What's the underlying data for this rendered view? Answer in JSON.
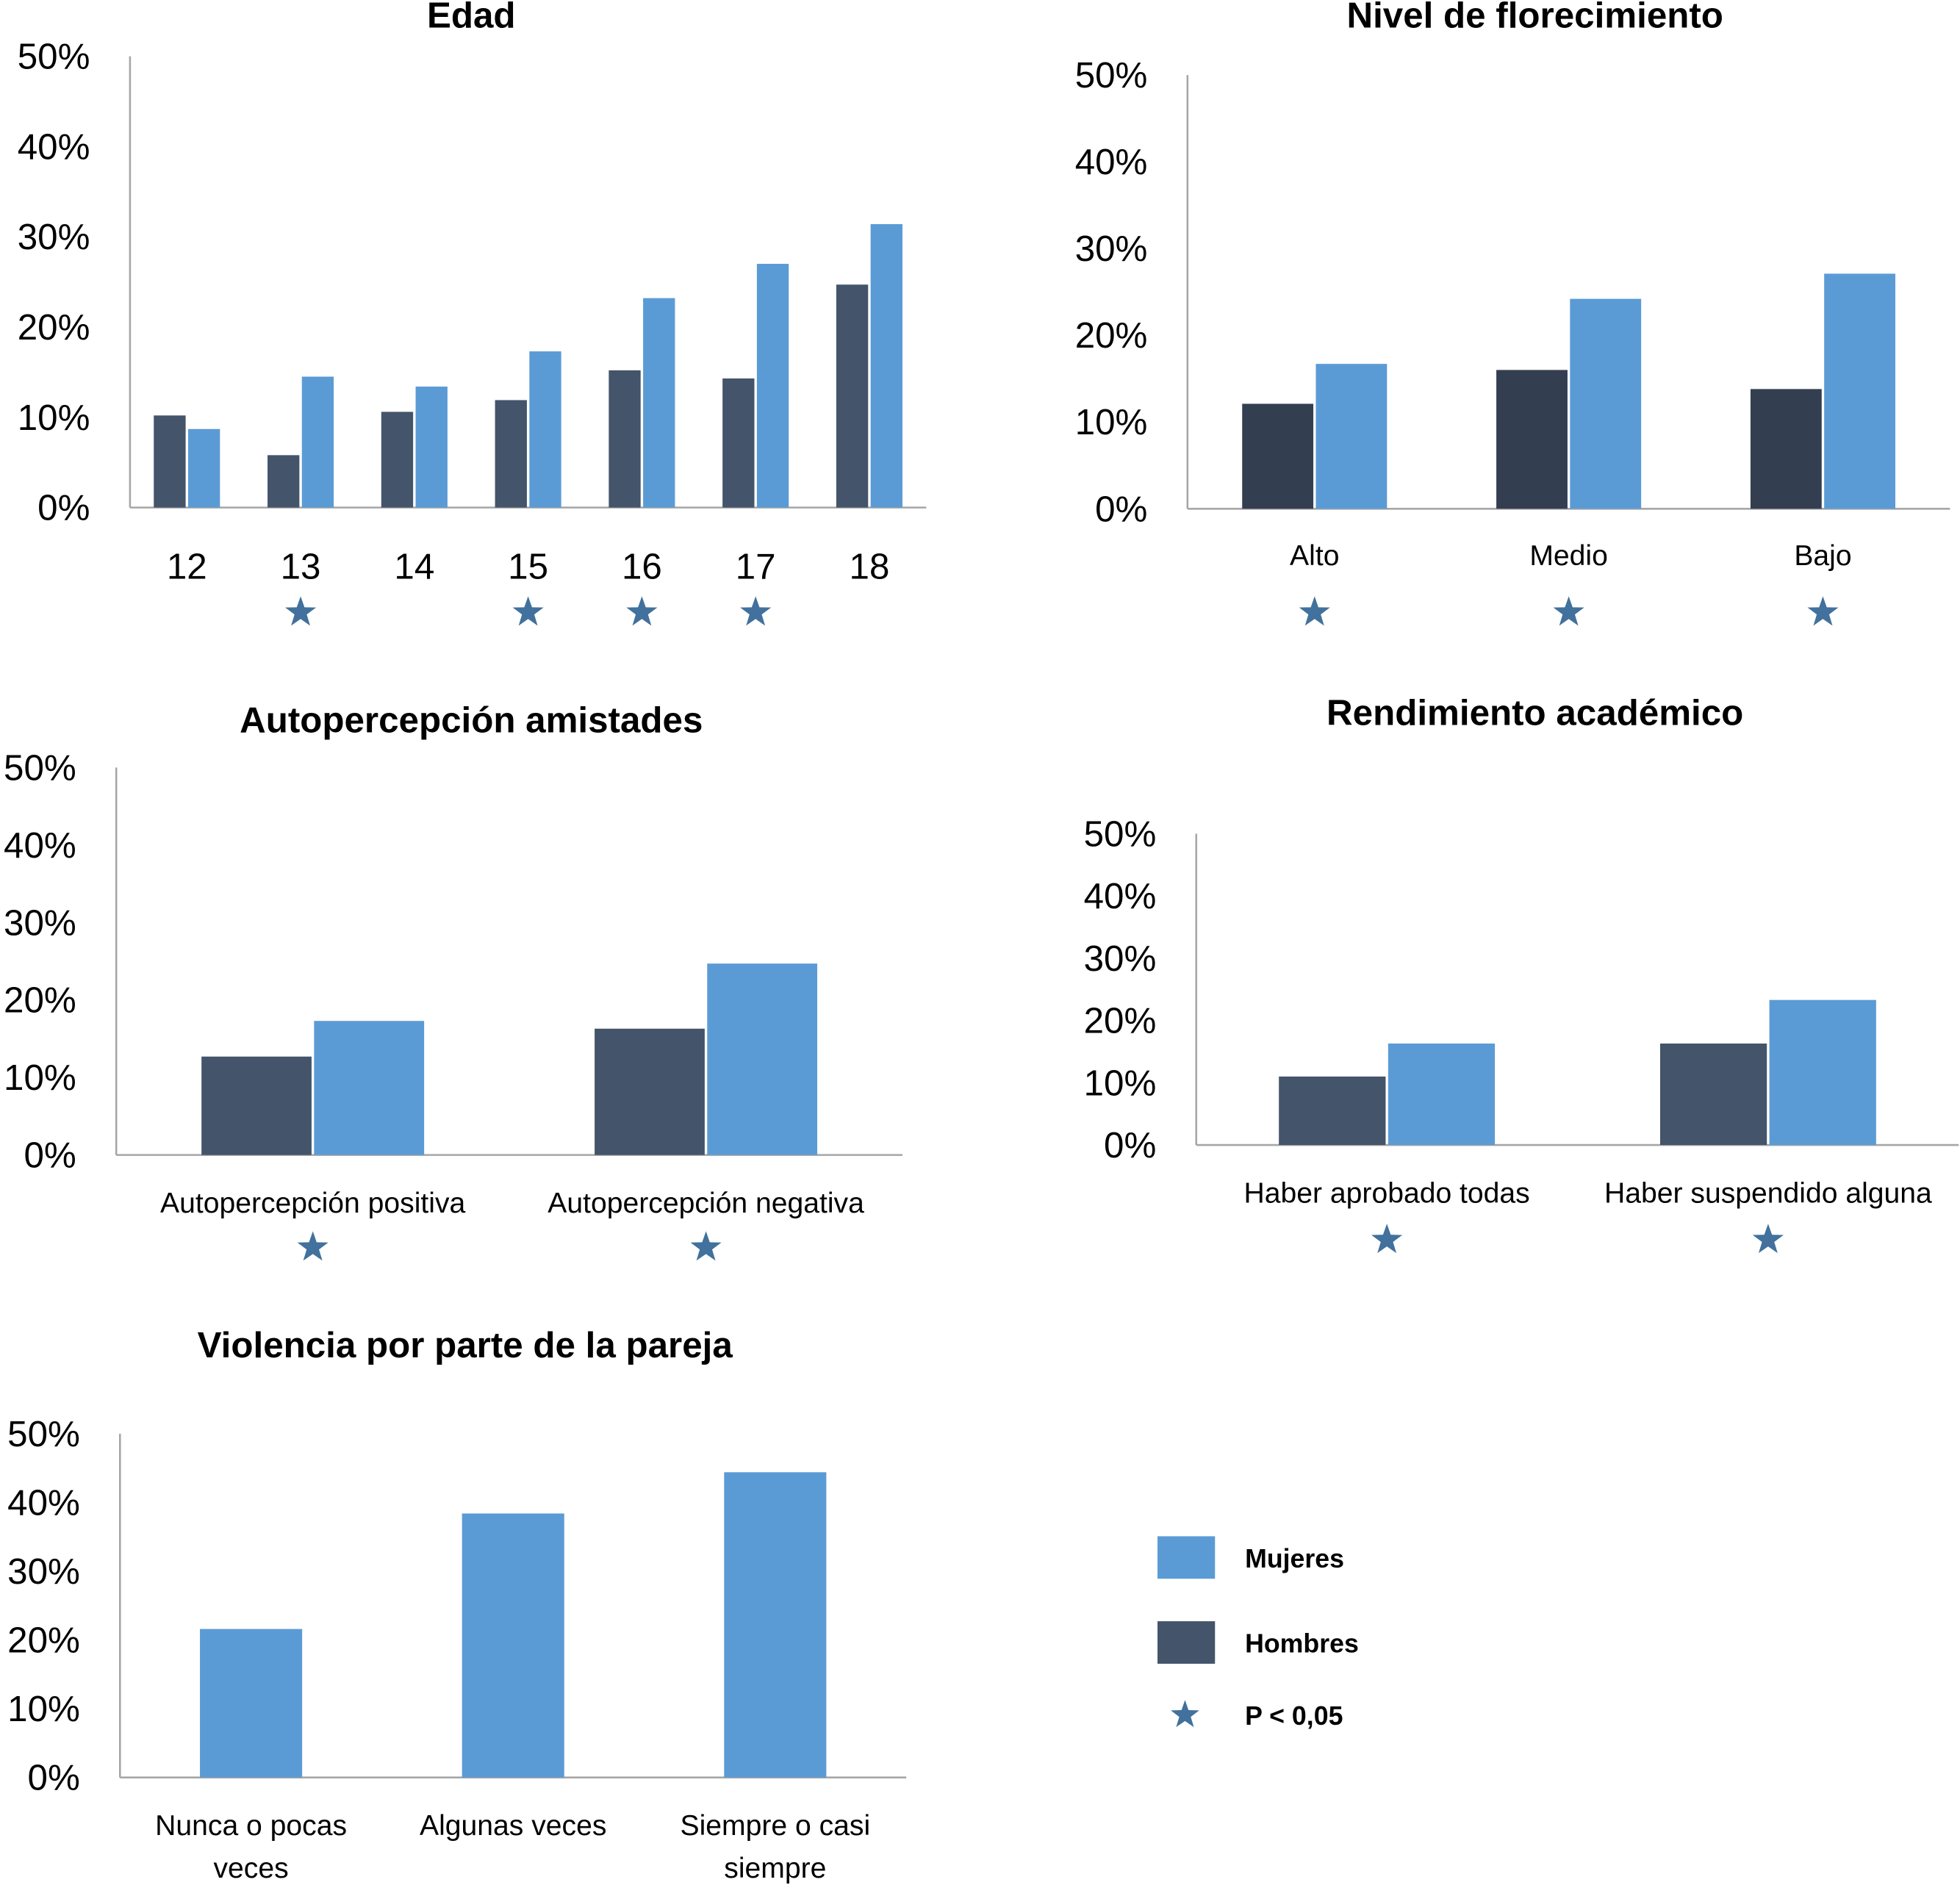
{
  "colors": {
    "mujeres": "#5b9bd5",
    "hombres": "#44546a",
    "hombres_alt": "#333f50",
    "star": "#41719c",
    "axis": "#a6a6a6"
  },
  "legend": {
    "mujeres": "Mujeres",
    "hombres": "Hombres",
    "significance": "P < 0,05",
    "significance_icon": "star-icon"
  },
  "chart_data": [
    {
      "type": "bar",
      "title": "Edad",
      "ylim": [
        0,
        50
      ],
      "yticks": [
        "0%",
        "10%",
        "20%",
        "30%",
        "40%",
        "50%"
      ],
      "categories": [
        "12",
        "13",
        "14",
        "15",
        "16",
        "17",
        "18"
      ],
      "series": [
        {
          "name": "Hombres",
          "values": [
            10.2,
            5.8,
            10.6,
            11.9,
            15.2,
            14.3,
            24.7
          ]
        },
        {
          "name": "Mujeres",
          "values": [
            8.7,
            14.5,
            13.4,
            17.3,
            23.2,
            27.0,
            31.4
          ]
        }
      ],
      "significant": [
        false,
        true,
        false,
        true,
        true,
        true,
        false
      ]
    },
    {
      "type": "bar",
      "title": "Nivel de florecimiento",
      "ylim": [
        0,
        50
      ],
      "yticks": [
        "0%",
        "10%",
        "20%",
        "30%",
        "40%",
        "50%"
      ],
      "categories": [
        "Alto",
        "Medio",
        "Bajo"
      ],
      "series": [
        {
          "name": "Hombres",
          "values": [
            12.1,
            16.0,
            13.8
          ]
        },
        {
          "name": "Mujeres",
          "values": [
            16.7,
            24.2,
            27.1
          ]
        }
      ],
      "significant": [
        true,
        true,
        true
      ]
    },
    {
      "type": "bar",
      "title": "Autopercepción amistades",
      "ylim": [
        0,
        50
      ],
      "yticks": [
        "0%",
        "10%",
        "20%",
        "30%",
        "40%",
        "50%"
      ],
      "categories": [
        "Autopercepción positiva",
        "Autopercepción negativa"
      ],
      "series": [
        {
          "name": "Hombres",
          "values": [
            12.7,
            16.3
          ]
        },
        {
          "name": "Mujeres",
          "values": [
            17.3,
            24.7
          ]
        }
      ],
      "significant": [
        true,
        true
      ]
    },
    {
      "type": "bar",
      "title": "Rendimiento académico",
      "ylim": [
        0,
        50
      ],
      "yticks": [
        "0%",
        "10%",
        "20%",
        "30%",
        "40%",
        "50%"
      ],
      "categories": [
        "Haber aprobado todas",
        "Haber suspendido alguna"
      ],
      "series": [
        {
          "name": "Hombres",
          "values": [
            11.0,
            16.3
          ]
        },
        {
          "name": "Mujeres",
          "values": [
            16.3,
            23.3
          ]
        }
      ],
      "significant": [
        true,
        true
      ]
    },
    {
      "type": "bar",
      "title": "Violencia por parte de la pareja",
      "ylim": [
        0,
        50
      ],
      "yticks": [
        "0%",
        "10%",
        "20%",
        "30%",
        "40%",
        "50%"
      ],
      "categories": [
        "Nunca o pocas veces",
        "Algunas veces",
        "Siempre o casi siempre"
      ],
      "series": [
        {
          "name": "Mujeres",
          "values": [
            21.6,
            38.4,
            44.4
          ]
        }
      ],
      "significant": [
        false,
        false,
        false
      ]
    }
  ]
}
